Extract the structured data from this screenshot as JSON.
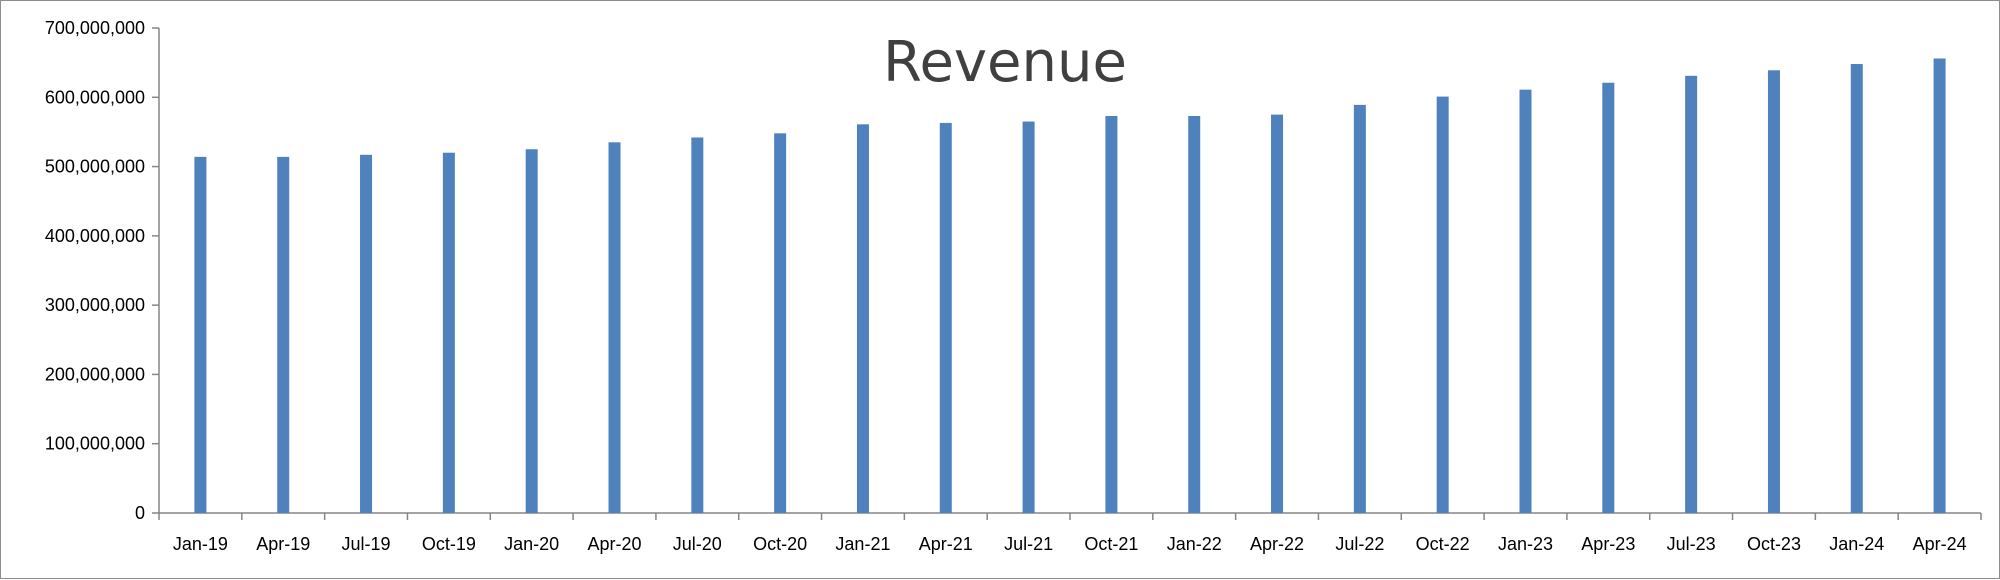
{
  "chart_data": {
    "type": "bar",
    "title": "Revenue",
    "xlabel": "",
    "ylabel": "",
    "ylim": [
      0,
      700000000
    ],
    "y_ticks": [
      "0",
      "100,000,000",
      "200,000,000",
      "300,000,000",
      "400,000,000",
      "500,000,000",
      "600,000,000",
      "700,000,000"
    ],
    "grid": false,
    "legend": "none",
    "bar_color": "#4F81BD",
    "categories": [
      "Jan-19",
      "Apr-19",
      "Jul-19",
      "Oct-19",
      "Jan-20",
      "Apr-20",
      "Jul-20",
      "Oct-20",
      "Jan-21",
      "Apr-21",
      "Jul-21",
      "Oct-21",
      "Jan-22",
      "Apr-22",
      "Jul-22",
      "Oct-22",
      "Jan-23",
      "Apr-23",
      "Jul-23",
      "Oct-23",
      "Jan-24",
      "Apr-24"
    ],
    "values": [
      514000000,
      514000000,
      517000000,
      520000000,
      525000000,
      535000000,
      542000000,
      548000000,
      561000000,
      563000000,
      565000000,
      573000000,
      573000000,
      575000000,
      589000000,
      601000000,
      611000000,
      621000000,
      631000000,
      639000000,
      648000000,
      656000000
    ]
  }
}
